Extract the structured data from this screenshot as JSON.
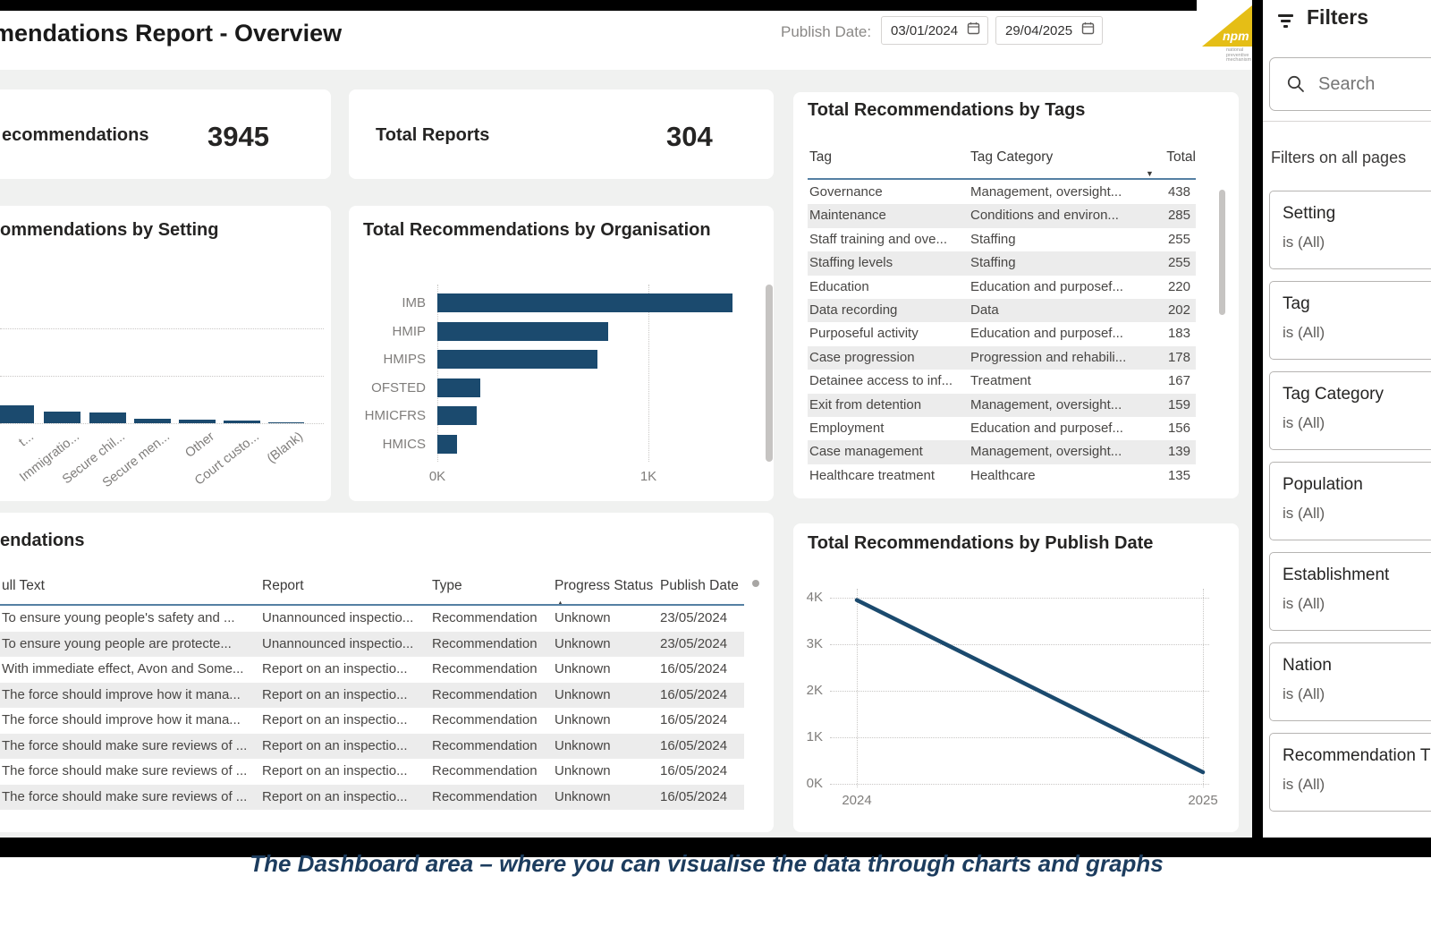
{
  "header": {
    "title": "mendations Report - Overview",
    "publish_date_label": "Publish Date:",
    "date_from": "03/01/2024",
    "date_to": "29/04/2025",
    "logo": {
      "text": "npm",
      "subtext": "national preventive mechanism",
      "color": "#e5be16"
    }
  },
  "kpis": [
    {
      "label": "ecommendations",
      "value": "3945"
    },
    {
      "label": "Total Reports",
      "value": "304"
    }
  ],
  "tags_table": {
    "title": "Total Recommendations by Tags",
    "columns": [
      "Tag",
      "Tag Category",
      "Total"
    ],
    "sort_column": "Total",
    "sort_direction": "desc",
    "rows": [
      [
        "Governance",
        "Management, oversight...",
        "438"
      ],
      [
        "Maintenance",
        "Conditions and environ...",
        "285"
      ],
      [
        "Staff training and ove...",
        "Staffing",
        "255"
      ],
      [
        "Staffing levels",
        "Staffing",
        "255"
      ],
      [
        "Education",
        "Education and purposef...",
        "220"
      ],
      [
        "Data recording",
        "Data",
        "202"
      ],
      [
        "Purposeful activity",
        "Education and purposef...",
        "183"
      ],
      [
        "Case progression",
        "Progression and rehabili...",
        "178"
      ],
      [
        "Detainee access to inf...",
        "Treatment",
        "167"
      ],
      [
        "Exit from detention",
        "Management, oversight...",
        "159"
      ],
      [
        "Employment",
        "Education and purposef...",
        "156"
      ],
      [
        "Case management",
        "Management, oversight...",
        "139"
      ],
      [
        "Healthcare treatment",
        "Healthcare",
        "135"
      ]
    ]
  },
  "recs_table": {
    "title": "endations",
    "columns": [
      "ull Text",
      "Report",
      "Type",
      "Progress Status",
      "Publish Date"
    ],
    "sort_column": "Progress Status",
    "sort_direction": "asc",
    "rows": [
      [
        "To ensure young people's safety and ...",
        "Unannounced inspectio...",
        "Recommendation",
        "Unknown",
        "23/05/2024"
      ],
      [
        "To ensure young people are protecte...",
        "Unannounced inspectio...",
        "Recommendation",
        "Unknown",
        "23/05/2024"
      ],
      [
        "With immediate effect, Avon and Some...",
        "Report on an inspectio...",
        "Recommendation",
        "Unknown",
        "16/05/2024"
      ],
      [
        "The force should improve how it mana...",
        "Report on an inspectio...",
        "Recommendation",
        "Unknown",
        "16/05/2024"
      ],
      [
        "The force should improve how it mana...",
        "Report on an inspectio...",
        "Recommendation",
        "Unknown",
        "16/05/2024"
      ],
      [
        "The force should make sure reviews of ...",
        "Report on an inspectio...",
        "Recommendation",
        "Unknown",
        "16/05/2024"
      ],
      [
        "The force should make sure reviews of ...",
        "Report on an inspectio...",
        "Recommendation",
        "Unknown",
        "16/05/2024"
      ],
      [
        "The force should make sure reviews of ...",
        "Report on an inspectio...",
        "Recommendation",
        "Unknown",
        "16/05/2024"
      ]
    ]
  },
  "filters_pane": {
    "title": "Filters",
    "search_placeholder": "Search",
    "section_label": "Filters on all pages",
    "items": [
      {
        "name": "Setting",
        "value": "is (All)"
      },
      {
        "name": "Tag",
        "value": "is (All)"
      },
      {
        "name": "Tag Category",
        "value": "is (All)"
      },
      {
        "name": "Population",
        "value": "is (All)"
      },
      {
        "name": "Establishment",
        "value": "is (All)"
      },
      {
        "name": "Nation",
        "value": "is (All)"
      },
      {
        "name": "Recommendation T",
        "value": "is (All)"
      }
    ]
  },
  "caption": "The Dashboard area – where you can visualise the data through charts and graphs",
  "colors": {
    "accent_navy": "#1b4a6e",
    "dashboard_bg": "#f0f1f0",
    "caption_navy": "#1c3c5e"
  },
  "chart_data": [
    {
      "id": "setting_chart",
      "type": "bar",
      "title": "ommendations by Setting",
      "categories": [
        "t...",
        "Immigratio...",
        "Secure chil...",
        "Secure men...",
        "Other",
        "Court custo...",
        "(Blank)"
      ],
      "values": [
        190,
        125,
        115,
        48,
        38,
        28,
        14
      ],
      "note": "chart cropped at left edge of screenshot; first bar and y-axis not fully visible; values estimated from bar heights"
    },
    {
      "id": "org_chart",
      "type": "bar",
      "orientation": "horizontal",
      "title": "Total Recommendations by Organisation",
      "categories": [
        "IMB",
        "HMIP",
        "HMIPS",
        "OFSTED",
        "HMICFRS",
        "HMICS"
      ],
      "values": [
        1400,
        810,
        760,
        205,
        185,
        95
      ],
      "xticks": [
        "0K",
        "1K"
      ],
      "xlim": [
        0,
        1500
      ]
    },
    {
      "id": "publish_date_chart",
      "type": "line",
      "title": "Total Recommendations by Publish Date",
      "x": [
        "2024",
        "2025"
      ],
      "values": [
        3950,
        250
      ],
      "yticks": [
        "0K",
        "1K",
        "2K",
        "3K",
        "4K"
      ],
      "ylim": [
        0,
        4000
      ]
    }
  ]
}
